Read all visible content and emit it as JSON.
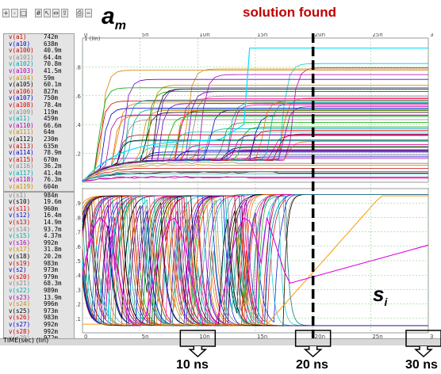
{
  "toolbar": {
    "icons": [
      "zoom-in-icon",
      "zoom-out-icon",
      "fit-icon",
      "grid-icon",
      "cursor-icon",
      "measure-icon",
      "export-icon",
      "print-icon",
      "waveform-icon"
    ]
  },
  "labels": {
    "am_letter": "a",
    "am_sub": "m",
    "solution": "solution found",
    "si_letter": "s",
    "si_sub": "i",
    "time_label": "TIME(sec) (lin)",
    "ann10": "10 ns",
    "ann20": "20 ns",
    "ann30": "30 ns",
    "top_unit": "1 (lin)"
  },
  "top_axis_ticks": [
    "0",
    "5n",
    "10n",
    "15n",
    "20n",
    "25n",
    "30n"
  ],
  "upper_y_ticks": [
    "0.8",
    "0.6",
    "0.4",
    "0.2"
  ],
  "lower_y_ticks": [
    "0.9",
    "0.8",
    "0.7",
    "0.6",
    "0.5",
    "0.4",
    "0.3",
    "0.2",
    "0.1"
  ],
  "legend_upper": [
    {
      "name": "v(a1)",
      "val": "742m",
      "color": "#cc0000"
    },
    {
      "name": "v(a10)",
      "val": "638m",
      "color": "#0000cc"
    },
    {
      "name": "v(a100)",
      "val": "40.9m",
      "color": "#cc0000"
    },
    {
      "name": "v(a101)",
      "val": "64.4m",
      "color": "#888888"
    },
    {
      "name": "v(a102)",
      "val": "70.8m",
      "color": "#00aaaa"
    },
    {
      "name": "v(a103)",
      "val": "41.5m",
      "color": "#aa00aa"
    },
    {
      "name": "v(a104)",
      "val": "59m",
      "color": "#cc8800"
    },
    {
      "name": "v(a105)",
      "val": "60.1m",
      "color": "#000000"
    },
    {
      "name": "v(a106)",
      "val": "827m",
      "color": "#cc0000"
    },
    {
      "name": "v(a107)",
      "val": "750m",
      "color": "#0000cc"
    },
    {
      "name": "v(a108)",
      "val": "78.4m",
      "color": "#cc0000"
    },
    {
      "name": "v(a109)",
      "val": "119m",
      "color": "#888888"
    },
    {
      "name": "v(a11)",
      "val": "459m",
      "color": "#00aaaa"
    },
    {
      "name": "v(a110)",
      "val": "66.6m",
      "color": "#aa00aa"
    },
    {
      "name": "v(a111)",
      "val": "64m",
      "color": "#cc8800"
    },
    {
      "name": "v(a112)",
      "val": "230m",
      "color": "#000000"
    },
    {
      "name": "v(a113)",
      "val": "635m",
      "color": "#cc0000"
    },
    {
      "name": "v(a114)",
      "val": "78.9m",
      "color": "#0000cc"
    },
    {
      "name": "v(a115)",
      "val": "670m",
      "color": "#cc0000"
    },
    {
      "name": "v(a116)",
      "val": "36.2m",
      "color": "#888888"
    },
    {
      "name": "v(a117)",
      "val": "41.4m",
      "color": "#00aaaa"
    },
    {
      "name": "v(a118)",
      "val": "76.3m",
      "color": "#aa00aa"
    },
    {
      "name": "v(a119)",
      "val": "604m",
      "color": "#cc8800"
    }
  ],
  "legend_lower": [
    {
      "name": "v(s1)",
      "val": "984m",
      "color": "#888888"
    },
    {
      "name": "v(s10)",
      "val": "19.6m",
      "color": "#000000"
    },
    {
      "name": "v(s11)",
      "val": "960m",
      "color": "#cc0000"
    },
    {
      "name": "v(s12)",
      "val": "16.4m",
      "color": "#0000cc"
    },
    {
      "name": "v(s13)",
      "val": "14.9m",
      "color": "#cc0000"
    },
    {
      "name": "v(s14)",
      "val": "93.7m",
      "color": "#888888"
    },
    {
      "name": "v(s15)",
      "val": "4.37m",
      "color": "#00aaaa"
    },
    {
      "name": "v(s16)",
      "val": "992m",
      "color": "#aa00aa"
    },
    {
      "name": "v(s17)",
      "val": "31.8m",
      "color": "#cc8800"
    },
    {
      "name": "v(s18)",
      "val": "20.2m",
      "color": "#000000"
    },
    {
      "name": "v(s19)",
      "val": "983m",
      "color": "#cc0000"
    },
    {
      "name": "v(s2)",
      "val": "973m",
      "color": "#0000cc"
    },
    {
      "name": "v(s20)",
      "val": "979m",
      "color": "#cc0000"
    },
    {
      "name": "v(s21)",
      "val": "68.3m",
      "color": "#888888"
    },
    {
      "name": "v(s22)",
      "val": "989m",
      "color": "#00aaaa"
    },
    {
      "name": "v(s23)",
      "val": "13.9m",
      "color": "#aa00aa"
    },
    {
      "name": "v(s24)",
      "val": "996m",
      "color": "#cc8800"
    },
    {
      "name": "v(s25)",
      "val": "973m",
      "color": "#000000"
    },
    {
      "name": "v(s26)",
      "val": "983m",
      "color": "#cc0000"
    },
    {
      "name": "v(s27)",
      "val": "992m",
      "color": "#0000cc"
    },
    {
      "name": "v(s28)",
      "val": "992m",
      "color": "#cc0000"
    },
    {
      "name": "v(s29)",
      "val": "972m",
      "color": "#888888"
    },
    {
      "name": "v(s3)",
      "val": "996m",
      "color": "#00aaaa"
    }
  ],
  "colors": {
    "palette": [
      "#cc0000",
      "#0000cc",
      "#000000",
      "#00aaaa",
      "#aa00aa",
      "#cc8800",
      "#888888",
      "#00aa00",
      "#ff6600",
      "#6600cc",
      "#00cccc",
      "#ff0099"
    ],
    "highlight_cyan": "#00e0ff",
    "pink_curve": "#e000e0",
    "orange_curve": "#ff9900",
    "grid": "#7fbf7f",
    "solution_text": "#c00000"
  }
}
